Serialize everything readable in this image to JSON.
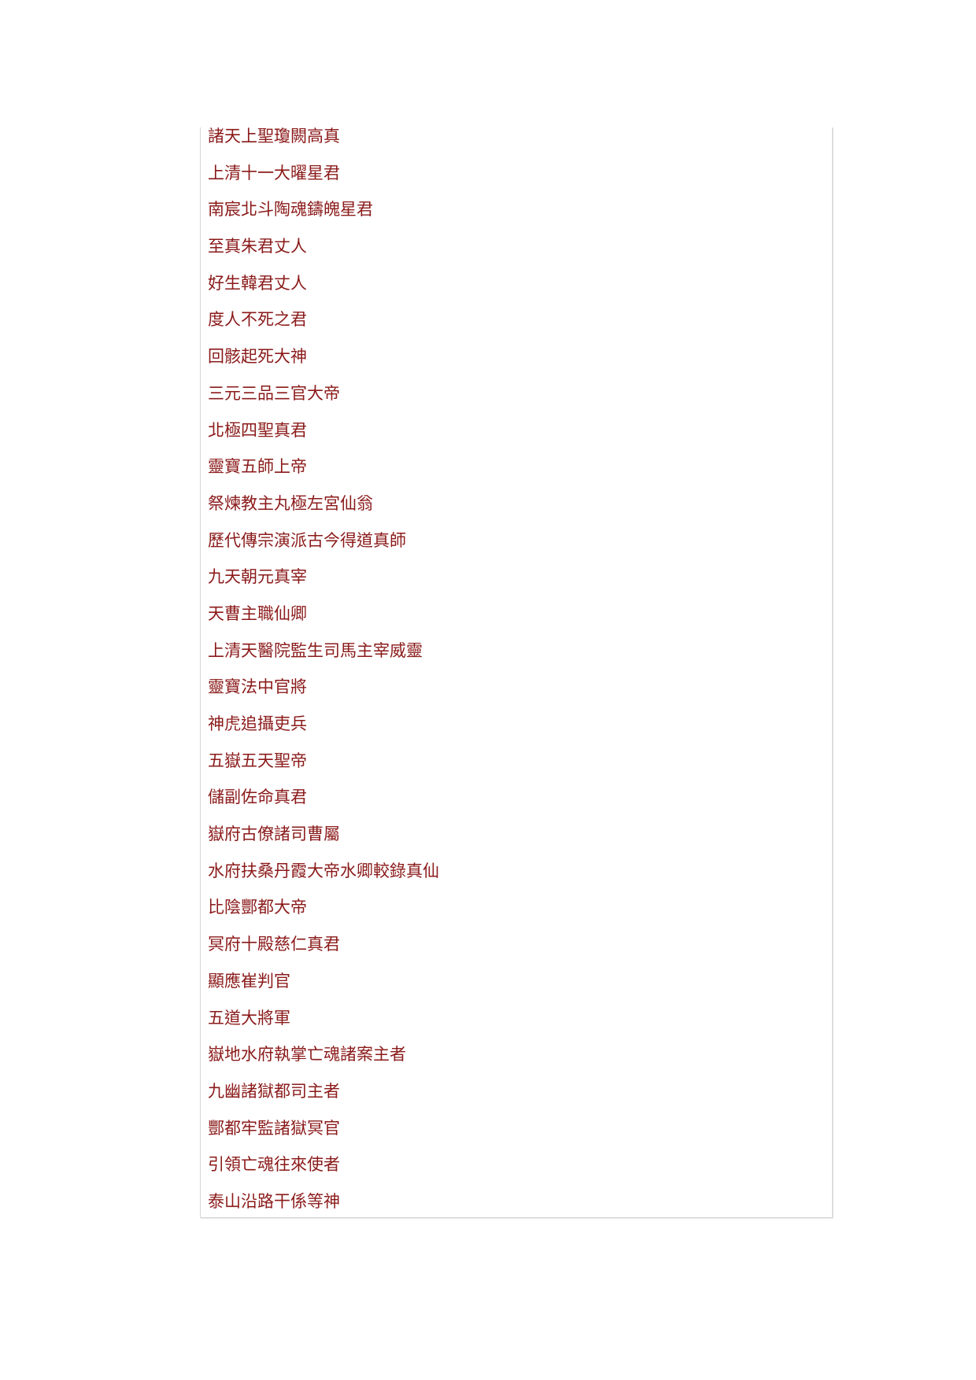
{
  "list": {
    "items": [
      "諸天上聖瓊闕高真",
      "上清十一大曜星君",
      "南宸北斗陶魂鑄魄星君",
      "至真朱君丈人",
      "好生韓君丈人",
      "度人不死之君",
      "回骸起死大神",
      "三元三品三官大帝",
      "北極四聖真君",
      "靈寶五師上帝",
      "祭煉教主丸極左宮仙翁",
      "歷代傳宗演派古今得道真師",
      "九天朝元真宰",
      "天曹主職仙卿",
      "上清天醫院監生司馬主宰威靈",
      "靈寶法中官將",
      "神虎追攝吏兵",
      "五嶽五天聖帝",
      "儲副佐命真君",
      "嶽府古僚諸司曹屬",
      "水府扶桑丹霞大帝水卿較錄真仙",
      "比陰酆都大帝",
      "冥府十殿慈仁真君",
      "顯應崔判官",
      "五道大將軍",
      "嶽地水府執掌亡魂諸案主者",
      "九幽諸獄都司主者",
      "酆都牢監諸獄冥官",
      "引領亡魂往來使者",
      "泰山沿路干係等神"
    ]
  }
}
